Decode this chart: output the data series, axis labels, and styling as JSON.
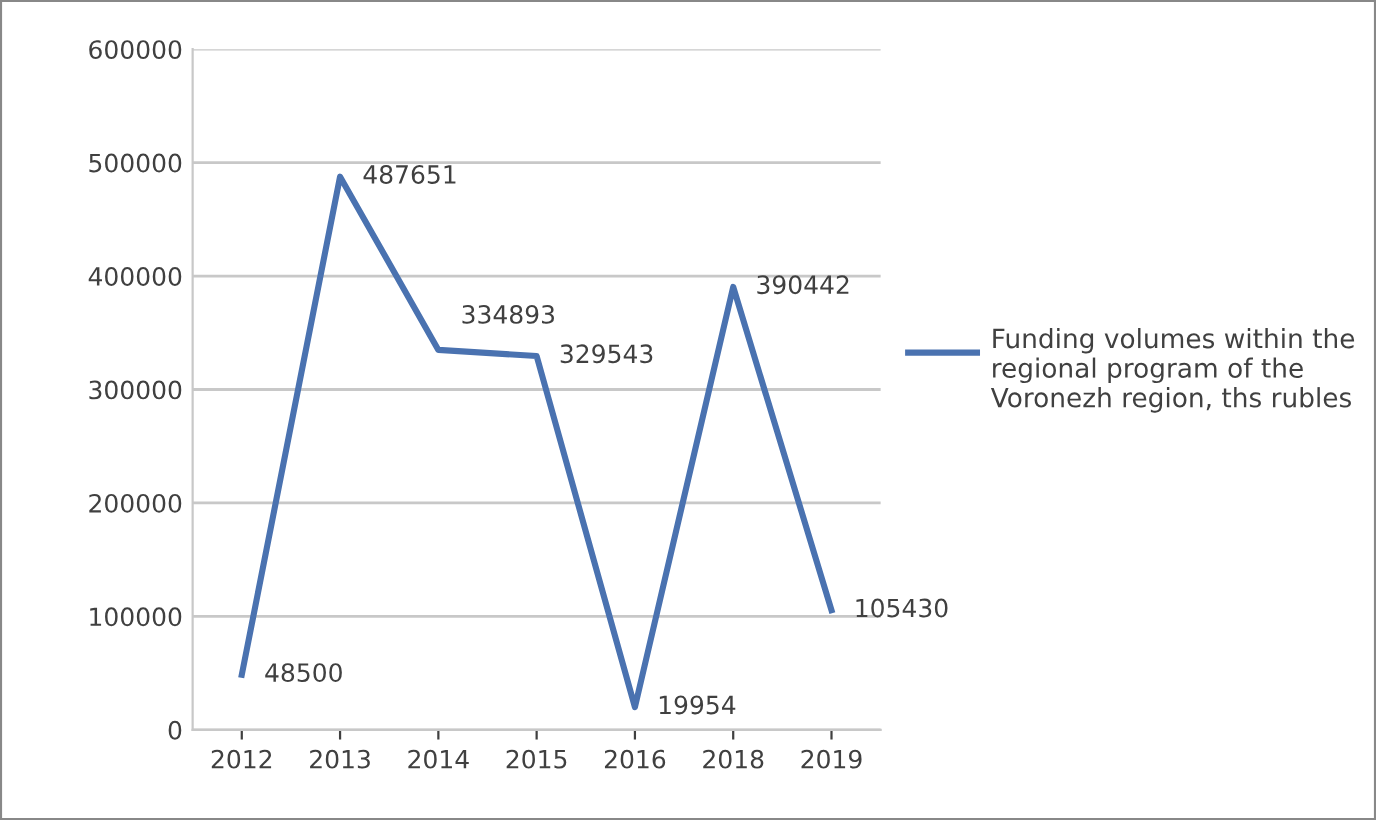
{
  "chart_data": {
    "type": "line",
    "categories": [
      "2012",
      "2013",
      "2014",
      "2015",
      "2016",
      "2018",
      "2019"
    ],
    "series": [
      {
        "name": "Funding volumes within the regional program of the Voronezh region, ths rubles",
        "color": "#4a72b0",
        "values": [
          48500,
          487651,
          334893,
          329543,
          19954,
          390442,
          105430
        ]
      }
    ],
    "ylim": [
      0,
      600000
    ],
    "yticks": [
      0,
      100000,
      200000,
      300000,
      400000,
      500000,
      600000
    ],
    "grid": "y",
    "legend": "right",
    "data_labels": true,
    "marker": "none",
    "line_style": "solid"
  }
}
